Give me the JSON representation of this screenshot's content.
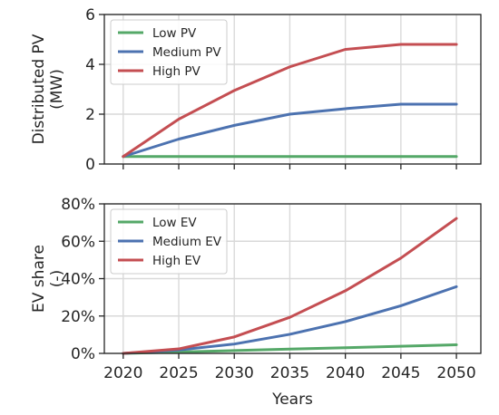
{
  "chart_data": [
    {
      "type": "line",
      "ylabel_lines": [
        "Distributed PV",
        "(MW)"
      ],
      "x": [
        2020,
        2025,
        2030,
        2035,
        2040,
        2045,
        2050
      ],
      "xlim": [
        2018.3,
        2052.2
      ],
      "ylim": [
        0,
        6
      ],
      "yticks": [
        0,
        2,
        4,
        6
      ],
      "ytick_labels": [
        "0",
        "2",
        "4",
        "6"
      ],
      "grid": true,
      "legend_position": "top-left",
      "series": [
        {
          "name": "Low PV",
          "color": "#55a868",
          "values": [
            0.3,
            0.3,
            0.3,
            0.3,
            0.3,
            0.3,
            0.3
          ]
        },
        {
          "name": "Medium PV",
          "color": "#4c72b0",
          "values": [
            0.3,
            1.0,
            1.55,
            2.0,
            2.22,
            2.4,
            2.4
          ]
        },
        {
          "name": "High PV",
          "color": "#c44e52",
          "values": [
            0.3,
            1.8,
            2.95,
            3.9,
            4.6,
            4.8,
            4.8
          ]
        }
      ]
    },
    {
      "type": "line",
      "ylabel_lines": [
        "EV share",
        "(-)"
      ],
      "xlabel": "Years",
      "x": [
        2020,
        2025,
        2030,
        2035,
        2040,
        2045,
        2050
      ],
      "xticks": [
        2020,
        2025,
        2030,
        2035,
        2040,
        2045,
        2050
      ],
      "xtick_labels": [
        "2020",
        "2025",
        "2030",
        "2035",
        "2040",
        "2045",
        "2050"
      ],
      "xlim": [
        2018.3,
        2052.2
      ],
      "ylim": [
        0,
        80
      ],
      "yticks": [
        0,
        20,
        40,
        60,
        80
      ],
      "ytick_labels": [
        "0%",
        "20%",
        "40%",
        "60%",
        "80%"
      ],
      "grid": true,
      "legend_position": "top-left",
      "series": [
        {
          "name": "Low EV",
          "color": "#55a868",
          "values": [
            0,
            0.7,
            1.5,
            2.3,
            3.0,
            3.8,
            4.6
          ]
        },
        {
          "name": "Medium EV",
          "color": "#4c72b0",
          "values": [
            0,
            1.8,
            5.0,
            10.2,
            17.0,
            25.5,
            35.7
          ]
        },
        {
          "name": "High EV",
          "color": "#c44e52",
          "values": [
            0,
            2.4,
            8.8,
            19.3,
            33.5,
            51.0,
            72.2
          ]
        }
      ]
    }
  ]
}
